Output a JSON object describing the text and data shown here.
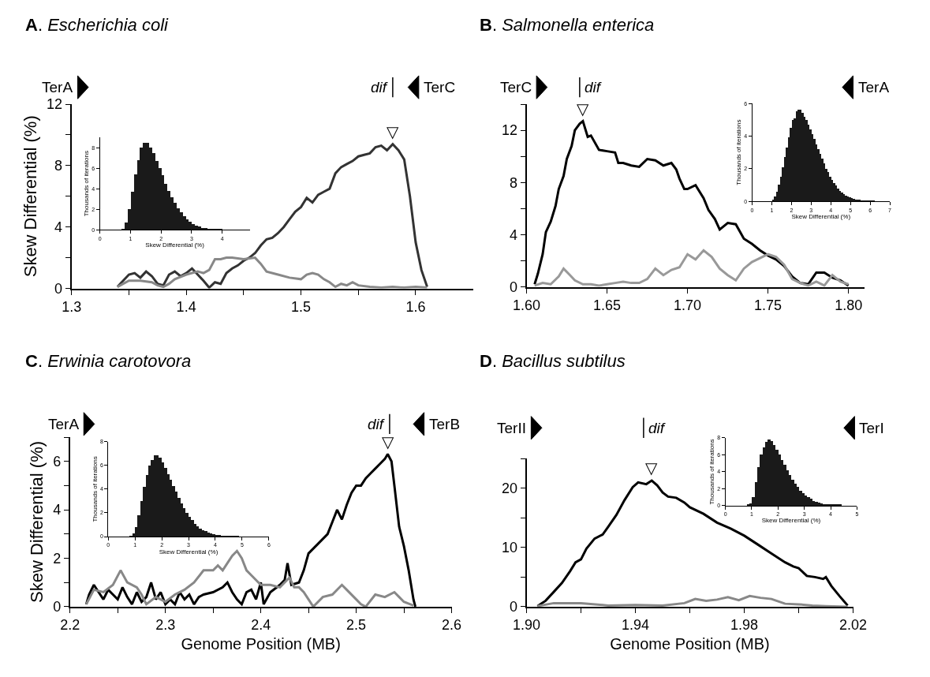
{
  "chart_data": [
    {
      "type": "line",
      "title": "A. Escherichia coli",
      "ylabel": "Skew Differential (%)",
      "xlim": [
        1.3,
        1.65
      ],
      "xticks": [
        1.3,
        {
          "value": 1.35,
          "label": null
        },
        1.4,
        {
          "value": 1.45,
          "label": null
        },
        1.5,
        {
          "value": 1.55,
          "label": null
        },
        1.6
      ],
      "ylim": [
        0,
        12
      ],
      "yticks": [
        0,
        {
          "value": 2,
          "label": null
        },
        4,
        {
          "value": 6,
          "label": null
        },
        8,
        {
          "value": 10,
          "label": null
        },
        12
      ],
      "series": [
        {
          "color": "#333333",
          "x": [
            1.34,
            1.345,
            1.35,
            1.355,
            1.36,
            1.365,
            1.37,
            1.375,
            1.38,
            1.385,
            1.39,
            1.395,
            1.4,
            1.405,
            1.41,
            1.415,
            1.42,
            1.425,
            1.43,
            1.435,
            1.44,
            1.445,
            1.45,
            1.455,
            1.46,
            1.465,
            1.47,
            1.475,
            1.48,
            1.485,
            1.49,
            1.495,
            1.5,
            1.505,
            1.51,
            1.515,
            1.52,
            1.525,
            1.53,
            1.535,
            1.54,
            1.545,
            1.55,
            1.555,
            1.56,
            1.565,
            1.57,
            1.575,
            1.58,
            1.585,
            1.59,
            1.595,
            1.6,
            1.605,
            1.61
          ],
          "values": [
            0.1,
            0.5,
            0.9,
            1.0,
            0.7,
            1.1,
            0.8,
            0.3,
            0.2,
            0.9,
            1.1,
            0.8,
            1.0,
            1.3,
            0.9,
            0.5,
            0.05,
            0.4,
            0.3,
            1.0,
            1.3,
            1.5,
            1.8,
            2.0,
            2.3,
            2.8,
            3.2,
            3.3,
            3.6,
            4.0,
            4.5,
            5.0,
            5.3,
            5.9,
            5.6,
            6.1,
            6.3,
            6.5,
            7.5,
            7.9,
            8.1,
            8.3,
            8.6,
            8.7,
            8.8,
            9.2,
            9.3,
            9.0,
            9.4,
            9.0,
            8.4,
            6.0,
            3.0,
            1.2,
            0.1
          ]
        },
        {
          "color": "#888888",
          "x": [
            1.34,
            1.345,
            1.35,
            1.36,
            1.37,
            1.375,
            1.38,
            1.385,
            1.39,
            1.4,
            1.41,
            1.415,
            1.42,
            1.425,
            1.43,
            1.435,
            1.44,
            1.45,
            1.46,
            1.465,
            1.47,
            1.48,
            1.49,
            1.5,
            1.505,
            1.51,
            1.515,
            1.52,
            1.525,
            1.53,
            1.535,
            1.54,
            1.545,
            1.55,
            1.56,
            1.57,
            1.58,
            1.59,
            1.6,
            1.61
          ],
          "values": [
            0.1,
            0.3,
            0.5,
            0.5,
            0.4,
            0.2,
            0.1,
            0.3,
            0.6,
            0.9,
            1.1,
            1.0,
            1.2,
            1.9,
            1.9,
            2.0,
            2.0,
            1.9,
            2.0,
            1.6,
            1.1,
            0.9,
            0.7,
            0.6,
            0.9,
            1.0,
            0.9,
            0.6,
            0.4,
            0.1,
            0.3,
            0.2,
            0.4,
            0.2,
            0.1,
            0.05,
            0.1,
            0.05,
            0.1,
            0.05
          ]
        }
      ],
      "ref_lines": [
        {
          "axis": "x",
          "value": 1.58,
          "label": "dif"
        }
      ],
      "annotations": [
        "TerA",
        "TerC",
        {
          "text": "▽",
          "x": 1.58,
          "y": 9.4
        }
      ]
    },
    {
      "type": "histogram",
      "xlabel": "Skew Differential (%)",
      "ylabel": "Thousands of iterations",
      "color": "#1a1a1a",
      "xlim": [
        0,
        4.9
      ],
      "xticks": [
        0,
        1,
        2,
        3,
        4
      ],
      "ylim": [
        0,
        9
      ],
      "yticks": [
        0,
        2,
        4,
        6,
        8
      ],
      "bins": [
        0.7,
        0.8,
        0.9,
        1.0,
        1.1,
        1.2,
        1.3,
        1.4,
        1.5,
        1.6,
        1.7,
        1.8,
        1.9,
        2.0,
        2.1,
        2.2,
        2.3,
        2.4,
        2.5,
        2.6,
        2.7,
        2.8,
        2.9,
        3.0,
        3.1,
        3.2,
        3.3,
        3.4,
        3.5,
        3.6,
        3.7,
        3.8,
        3.9,
        4.0,
        4.1
      ],
      "values": [
        0.05,
        0.7,
        2.0,
        3.7,
        5.4,
        6.8,
        8.0,
        8.5,
        8.5,
        8.0,
        7.5,
        6.7,
        6.0,
        5.3,
        4.5,
        3.8,
        3.2,
        2.6,
        2.1,
        1.7,
        1.3,
        1.0,
        0.75,
        0.55,
        0.4,
        0.3,
        0.2,
        0.15,
        0.1,
        0.07,
        0.05,
        0.03,
        0.02,
        0.01
      ]
    },
    {
      "type": "line",
      "title": "B. Salmonella enterica",
      "xlim": [
        1.6,
        1.81
      ],
      "xticks": [
        {
          "value": 1.6,
          "label": "1.60"
        },
        1.65,
        {
          "value": 1.7,
          "label": "1.70"
        },
        1.75,
        {
          "value": 1.8,
          "label": "1.80"
        }
      ],
      "ylim": [
        0,
        14
      ],
      "yticks": [
        0,
        {
          "value": 2,
          "label": null
        },
        4,
        {
          "value": 6,
          "label": null
        },
        8,
        {
          "value": 10,
          "label": null
        },
        12,
        {
          "value": 14,
          "label": null
        }
      ],
      "series": [
        {
          "color": "#000000",
          "x": [
            1.605,
            1.607,
            1.61,
            1.612,
            1.615,
            1.618,
            1.62,
            1.623,
            1.625,
            1.628,
            1.63,
            1.633,
            1.635,
            1.638,
            1.64,
            1.645,
            1.65,
            1.655,
            1.657,
            1.66,
            1.665,
            1.67,
            1.675,
            1.68,
            1.685,
            1.69,
            1.693,
            1.695,
            1.698,
            1.7,
            1.705,
            1.71,
            1.713,
            1.717,
            1.72,
            1.725,
            1.73,
            1.735,
            1.74,
            1.745,
            1.75,
            1.755,
            1.76,
            1.765,
            1.77,
            1.775,
            1.78,
            1.785,
            1.79,
            1.795,
            1.8
          ],
          "values": [
            0.2,
            1.0,
            2.5,
            4.2,
            5.0,
            6.2,
            7.5,
            8.5,
            9.8,
            10.8,
            12.0,
            12.5,
            12.7,
            11.5,
            11.6,
            10.5,
            10.4,
            10.3,
            9.5,
            9.5,
            9.3,
            9.2,
            9.8,
            9.7,
            9.3,
            9.5,
            9.0,
            8.3,
            7.5,
            7.5,
            7.8,
            6.8,
            5.9,
            5.2,
            4.4,
            4.9,
            4.8,
            3.7,
            3.3,
            2.8,
            2.4,
            2.1,
            1.6,
            0.8,
            0.3,
            0.2,
            1.1,
            1.1,
            0.7,
            0.5,
            0.1
          ]
        },
        {
          "color": "#999999",
          "x": [
            1.605,
            1.61,
            1.615,
            1.62,
            1.623,
            1.627,
            1.63,
            1.635,
            1.64,
            1.645,
            1.65,
            1.655,
            1.66,
            1.665,
            1.67,
            1.675,
            1.68,
            1.685,
            1.69,
            1.695,
            1.7,
            1.705,
            1.71,
            1.715,
            1.72,
            1.725,
            1.73,
            1.735,
            1.74,
            1.745,
            1.75,
            1.755,
            1.76,
            1.765,
            1.77,
            1.775,
            1.78,
            1.785,
            1.79,
            1.795,
            1.8
          ],
          "values": [
            0.1,
            0.3,
            0.2,
            0.8,
            1.4,
            0.9,
            0.5,
            0.2,
            0.2,
            0.1,
            0.2,
            0.3,
            0.4,
            0.3,
            0.3,
            0.6,
            1.4,
            0.9,
            1.3,
            1.5,
            2.5,
            2.1,
            2.8,
            2.3,
            1.4,
            0.9,
            0.5,
            1.4,
            1.9,
            2.2,
            2.5,
            2.3,
            1.7,
            0.6,
            0.3,
            0.1,
            0.4,
            0.1,
            0.9,
            0.4,
            0.2
          ]
        }
      ],
      "ref_lines": [
        {
          "axis": "x",
          "value": 1.633,
          "label": "dif"
        }
      ],
      "annotations": [
        "TerC",
        "TerA",
        {
          "text": "▽",
          "x": 1.635,
          "y": 12.7
        }
      ]
    },
    {
      "type": "histogram",
      "xlabel": "Skew Differential (%)",
      "ylabel": "Thousands of iterations",
      "color": "#1a1a1a",
      "xlim": [
        0,
        7
      ],
      "xticks": [
        0,
        1,
        2,
        3,
        4,
        5,
        6,
        7
      ],
      "ylim": [
        0,
        6
      ],
      "yticks": [
        0,
        2,
        4,
        6
      ],
      "bins": [
        1.0,
        1.1,
        1.2,
        1.3,
        1.4,
        1.5,
        1.6,
        1.7,
        1.8,
        1.9,
        2.0,
        2.1,
        2.2,
        2.3,
        2.4,
        2.5,
        2.6,
        2.7,
        2.8,
        2.9,
        3.0,
        3.1,
        3.2,
        3.3,
        3.4,
        3.5,
        3.6,
        3.7,
        3.8,
        3.9,
        4.0,
        4.1,
        4.2,
        4.3,
        4.4,
        4.5,
        4.6,
        4.7,
        4.8,
        4.9,
        5.0,
        5.1,
        5.2,
        5.3,
        5.4,
        5.5,
        5.6,
        5.7,
        5.8,
        5.9,
        6.0,
        6.1,
        6.2
      ],
      "values": [
        0.1,
        0.3,
        0.6,
        1.0,
        1.5,
        2.1,
        2.7,
        3.3,
        3.9,
        4.5,
        5.0,
        5.1,
        5.5,
        5.6,
        5.6,
        5.4,
        5.2,
        5.0,
        4.7,
        4.4,
        4.1,
        3.8,
        3.5,
        3.2,
        2.9,
        2.6,
        2.3,
        2.0,
        1.8,
        1.5,
        1.3,
        1.1,
        0.95,
        0.8,
        0.65,
        0.55,
        0.45,
        0.35,
        0.3,
        0.25,
        0.2,
        0.15,
        0.12,
        0.1,
        0.08,
        0.06,
        0.05,
        0.04,
        0.03,
        0.02,
        0.02,
        0.01
      ]
    },
    {
      "type": "line",
      "title": "C. Erwinia carotovora",
      "xlabel": "Genome Position (MB)",
      "ylabel": "Skew Differential (%)",
      "xlim": [
        2.2,
        2.6
      ],
      "xticks": [
        2.2,
        {
          "value": 2.25,
          "label": null
        },
        2.3,
        {
          "value": 2.35,
          "label": null
        },
        2.4,
        {
          "value": 2.45,
          "label": null
        },
        2.5,
        {
          "value": 2.55,
          "label": null
        },
        2.6
      ],
      "ylim": [
        0,
        7
      ],
      "yticks": [
        0,
        {
          "value": 1,
          "label": null
        },
        2,
        {
          "value": 3,
          "label": null
        },
        4,
        {
          "value": 5,
          "label": null
        },
        6,
        {
          "value": 7,
          "label": null
        }
      ],
      "series": [
        {
          "color": "#000000",
          "x": [
            2.217,
            2.22,
            2.225,
            2.23,
            2.235,
            2.24,
            2.245,
            2.25,
            2.255,
            2.26,
            2.265,
            2.27,
            2.275,
            2.28,
            2.285,
            2.29,
            2.295,
            2.3,
            2.305,
            2.31,
            2.315,
            2.32,
            2.325,
            2.33,
            2.335,
            2.34,
            2.35,
            2.36,
            2.365,
            2.37,
            2.375,
            2.38,
            2.385,
            2.39,
            2.395,
            2.4,
            2.403,
            2.41,
            2.42,
            2.425,
            2.428,
            2.432,
            2.44,
            2.445,
            2.45,
            2.46,
            2.47,
            2.475,
            2.48,
            2.485,
            2.49,
            2.495,
            2.5,
            2.505,
            2.51,
            2.515,
            2.52,
            2.525,
            2.53,
            2.533,
            2.537,
            2.54,
            2.545,
            2.55,
            2.555,
            2.56,
            2.562
          ],
          "values": [
            0.1,
            0.5,
            0.9,
            0.6,
            0.3,
            0.7,
            0.5,
            0.3,
            0.8,
            0.4,
            0.1,
            0.6,
            0.2,
            0.4,
            1.0,
            0.3,
            0.6,
            0.1,
            0.3,
            0.1,
            0.6,
            0.3,
            0.5,
            0.1,
            0.4,
            0.5,
            0.6,
            0.8,
            1.0,
            0.6,
            0.3,
            0.1,
            0.6,
            0.7,
            0.3,
            1.0,
            0.1,
            0.6,
            0.9,
            1.1,
            1.8,
            0.9,
            1.0,
            1.5,
            2.2,
            2.6,
            3.0,
            3.5,
            4.0,
            3.6,
            4.2,
            4.7,
            5.0,
            5.0,
            5.3,
            5.5,
            5.7,
            5.9,
            6.1,
            6.3,
            6.0,
            5.0,
            3.3,
            2.5,
            1.5,
            0.3,
            0.0
          ]
        },
        {
          "color": "#888888",
          "x": [
            2.217,
            2.225,
            2.235,
            2.245,
            2.253,
            2.26,
            2.27,
            2.275,
            2.28,
            2.29,
            2.3,
            2.31,
            2.32,
            2.33,
            2.34,
            2.35,
            2.355,
            2.36,
            2.365,
            2.37,
            2.375,
            2.38,
            2.385,
            2.39,
            2.4,
            2.41,
            2.42,
            2.43,
            2.435,
            2.44,
            2.445,
            2.45,
            2.455,
            2.465,
            2.475,
            2.485,
            2.49,
            2.5,
            2.505,
            2.51,
            2.52,
            2.53,
            2.54,
            2.545,
            2.55,
            2.56
          ],
          "values": [
            0.1,
            0.7,
            0.6,
            0.9,
            1.5,
            1.0,
            0.8,
            0.5,
            0.1,
            0.4,
            0.2,
            0.5,
            0.7,
            1.0,
            1.5,
            1.5,
            1.7,
            1.5,
            1.8,
            2.1,
            2.3,
            2.0,
            1.5,
            1.3,
            0.9,
            0.9,
            0.8,
            1.2,
            0.8,
            0.8,
            0.6,
            0.3,
            0.0,
            0.4,
            0.5,
            0.9,
            0.7,
            0.3,
            0.1,
            0.0,
            0.5,
            0.4,
            0.6,
            0.4,
            0.2,
            0.05
          ]
        }
      ],
      "ref_lines": [
        {
          "axis": "x",
          "value": 2.535,
          "label": "dif"
        }
      ],
      "annotations": [
        "TerA",
        "TerB",
        {
          "text": "▽",
          "x": 2.533,
          "y": 6.3
        }
      ]
    },
    {
      "type": "histogram",
      "xlabel": "Skew Differential (%)",
      "ylabel": "Thousands of iterations",
      "color": "#1a1a1a",
      "xlim": [
        0,
        6
      ],
      "xticks": [
        0,
        1,
        2,
        3,
        4,
        5,
        6
      ],
      "ylim": [
        0,
        8
      ],
      "yticks": [
        0,
        2,
        4,
        6,
        8
      ],
      "bins": [
        0.8,
        0.9,
        1.0,
        1.1,
        1.2,
        1.3,
        1.4,
        1.5,
        1.6,
        1.7,
        1.8,
        1.9,
        2.0,
        2.1,
        2.2,
        2.3,
        2.4,
        2.5,
        2.6,
        2.7,
        2.8,
        2.9,
        3.0,
        3.1,
        3.2,
        3.3,
        3.4,
        3.5,
        3.6,
        3.7,
        3.8,
        3.9,
        4.0,
        4.1,
        4.2,
        4.3,
        4.4,
        4.5,
        4.6,
        4.7,
        4.8,
        4.9
      ],
      "values": [
        0.05,
        0.3,
        0.8,
        1.8,
        3.0,
        4.2,
        5.2,
        6.0,
        6.5,
        6.9,
        6.9,
        6.7,
        6.3,
        5.8,
        5.3,
        4.8,
        4.3,
        3.8,
        3.3,
        2.8,
        2.4,
        2.0,
        1.7,
        1.4,
        1.1,
        0.9,
        0.7,
        0.55,
        0.45,
        0.35,
        0.27,
        0.2,
        0.15,
        0.11,
        0.08,
        0.06,
        0.05,
        0.04,
        0.03,
        0.02,
        0.01
      ]
    },
    {
      "type": "line",
      "title": "D. Bacillus subtilus",
      "xlabel": "Genome Position (MB)",
      "xlim": [
        1.9,
        2.02
      ],
      "xticks": [
        {
          "value": 1.9,
          "label": "1.90"
        },
        {
          "value": 1.92,
          "label": null
        },
        1.94,
        {
          "value": 1.96,
          "label": null
        },
        1.98,
        {
          "value": 2.0,
          "label": null
        },
        2.02
      ],
      "ylim": [
        0,
        25
      ],
      "yticks": [
        0,
        {
          "value": 5,
          "label": null
        },
        10,
        {
          "value": 15,
          "label": null
        },
        20,
        {
          "value": 25,
          "label": null
        }
      ],
      "series": [
        {
          "color": "#000000",
          "x": [
            1.904,
            1.907,
            1.91,
            1.913,
            1.916,
            1.918,
            1.92,
            1.922,
            1.925,
            1.928,
            1.93,
            1.933,
            1.936,
            1.939,
            1.941,
            1.944,
            1.946,
            1.948,
            1.95,
            1.952,
            1.955,
            1.958,
            1.96,
            1.965,
            1.97,
            1.975,
            1.98,
            1.985,
            1.99,
            1.995,
            1.998,
            2.0,
            2.003,
            2.006,
            2.009,
            2.01,
            2.012,
            2.015,
            2.018
          ],
          "values": [
            0.1,
            1.0,
            2.5,
            4.0,
            6.0,
            7.5,
            8.0,
            9.8,
            11.5,
            12.2,
            13.5,
            15.5,
            18.0,
            20.2,
            21.0,
            20.7,
            21.3,
            20.5,
            19.3,
            18.6,
            18.4,
            17.6,
            16.8,
            15.7,
            14.2,
            13.2,
            12.0,
            10.5,
            9.0,
            7.5,
            6.8,
            6.5,
            5.2,
            5.0,
            4.7,
            5.0,
            3.5,
            1.8,
            0.2
          ]
        },
        {
          "color": "#888888",
          "x": [
            1.904,
            1.91,
            1.92,
            1.93,
            1.94,
            1.95,
            1.958,
            1.962,
            1.966,
            1.97,
            1.974,
            1.978,
            1.982,
            1.986,
            1.99,
            1.995,
            2.0,
            2.005,
            2.01,
            2.018
          ],
          "values": [
            0.1,
            0.6,
            0.6,
            0.2,
            0.3,
            0.2,
            0.6,
            1.3,
            1.0,
            1.2,
            1.6,
            1.1,
            1.8,
            1.5,
            1.3,
            0.5,
            0.4,
            0.2,
            0.1,
            0.0
          ]
        }
      ],
      "ref_lines": [
        {
          "axis": "x",
          "value": 1.943,
          "label": "dif"
        }
      ],
      "annotations": [
        "TerII",
        "TerI",
        {
          "text": "▽",
          "x": 1.946,
          "y": 21.3
        }
      ]
    },
    {
      "type": "histogram",
      "xlabel": "Skew Differential (%)",
      "ylabel": "Thousands of iterations",
      "color": "#1a1a1a",
      "xlim": [
        0,
        5
      ],
      "xticks": [
        0,
        1,
        2,
        3,
        4,
        5
      ],
      "ylim": [
        0,
        8
      ],
      "yticks": [
        0,
        2,
        4,
        6,
        8
      ],
      "bins": [
        0.8,
        0.9,
        1.0,
        1.1,
        1.2,
        1.3,
        1.4,
        1.5,
        1.6,
        1.7,
        1.8,
        1.9,
        2.0,
        2.1,
        2.2,
        2.3,
        2.4,
        2.5,
        2.6,
        2.7,
        2.8,
        2.9,
        3.0,
        3.1,
        3.2,
        3.3,
        3.4,
        3.5,
        3.6,
        3.7,
        3.8,
        3.9,
        4.0,
        4.1,
        4.2,
        4.3,
        4.4
      ],
      "values": [
        0.1,
        0.3,
        1.0,
        2.8,
        4.6,
        6.0,
        6.9,
        7.5,
        7.8,
        7.6,
        7.2,
        6.6,
        6.0,
        5.4,
        4.8,
        4.2,
        3.6,
        3.1,
        2.6,
        2.2,
        1.8,
        1.5,
        1.2,
        1.0,
        0.8,
        0.6,
        0.5,
        0.4,
        0.3,
        0.2,
        0.2,
        0.1,
        0.1,
        0.1,
        0.1,
        0.1
      ]
    }
  ]
}
